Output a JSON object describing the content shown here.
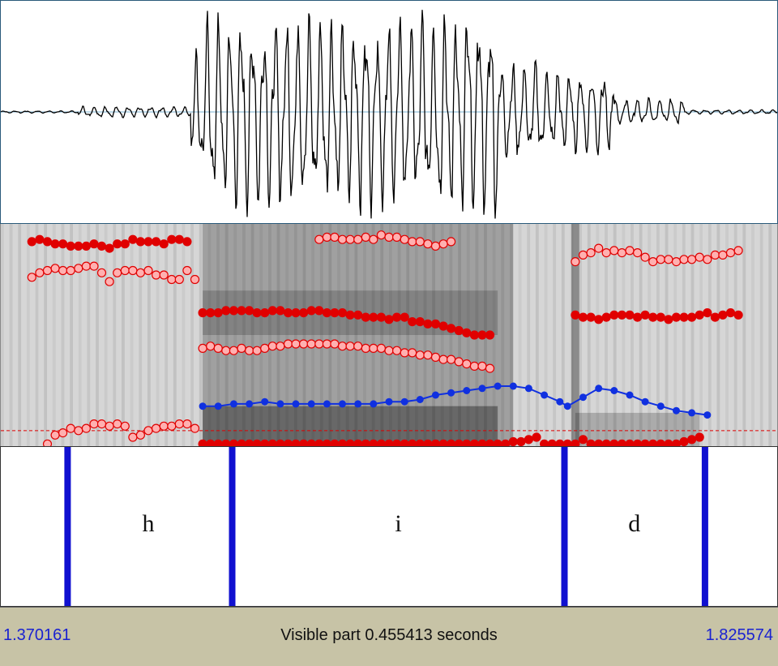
{
  "colors": {
    "boundary": "#1010d0",
    "formant": "#e00000",
    "pitch": "#1030e0",
    "time_label": "#1a22d0"
  },
  "waveform": {
    "segments": [
      {
        "from": 0.0,
        "to": 0.1,
        "amp": 0.01
      },
      {
        "from": 0.1,
        "to": 0.245,
        "amp": 0.05
      },
      {
        "from": 0.245,
        "to": 0.265,
        "amp": 0.55
      },
      {
        "from": 0.265,
        "to": 0.56,
        "amp": 0.86
      },
      {
        "from": 0.56,
        "to": 0.64,
        "amp": 0.95
      },
      {
        "from": 0.64,
        "to": 0.7,
        "amp": 0.45
      },
      {
        "from": 0.7,
        "to": 0.79,
        "amp": 0.38
      },
      {
        "from": 0.79,
        "to": 0.88,
        "amp": 0.12
      },
      {
        "from": 0.88,
        "to": 1.0,
        "amp": 0.02
      }
    ]
  },
  "spectrogram": {
    "formant_tracks": [
      [
        [
          0.06,
          0.01
        ],
        [
          0.07,
          0.05
        ],
        [
          0.08,
          0.06
        ],
        [
          0.09,
          0.08
        ],
        [
          0.1,
          0.07
        ],
        [
          0.11,
          0.08
        ],
        [
          0.12,
          0.1
        ],
        [
          0.13,
          0.1
        ],
        [
          0.14,
          0.09
        ],
        [
          0.15,
          0.1
        ],
        [
          0.16,
          0.09
        ],
        [
          0.17,
          0.04
        ],
        [
          0.18,
          0.05
        ],
        [
          0.19,
          0.07
        ],
        [
          0.2,
          0.08
        ],
        [
          0.21,
          0.09
        ],
        [
          0.22,
          0.09
        ],
        [
          0.23,
          0.1
        ],
        [
          0.24,
          0.1
        ],
        [
          0.25,
          0.08
        ]
      ],
      [
        [
          0.26,
          0.01
        ],
        [
          0.27,
          0.01
        ],
        [
          0.28,
          0.01
        ],
        [
          0.29,
          0.01
        ],
        [
          0.3,
          0.01
        ],
        [
          0.31,
          0.01
        ],
        [
          0.32,
          0.01
        ],
        [
          0.33,
          0.01
        ],
        [
          0.34,
          0.01
        ],
        [
          0.35,
          0.01
        ],
        [
          0.36,
          0.01
        ],
        [
          0.37,
          0.01
        ],
        [
          0.38,
          0.01
        ],
        [
          0.39,
          0.01
        ],
        [
          0.4,
          0.01
        ],
        [
          0.41,
          0.01
        ],
        [
          0.42,
          0.01
        ],
        [
          0.43,
          0.01
        ],
        [
          0.44,
          0.01
        ],
        [
          0.45,
          0.01
        ],
        [
          0.46,
          0.01
        ],
        [
          0.47,
          0.01
        ],
        [
          0.48,
          0.01
        ],
        [
          0.49,
          0.01
        ],
        [
          0.5,
          0.01
        ],
        [
          0.51,
          0.01
        ],
        [
          0.52,
          0.01
        ],
        [
          0.53,
          0.01
        ],
        [
          0.54,
          0.01
        ],
        [
          0.55,
          0.01
        ],
        [
          0.56,
          0.01
        ],
        [
          0.57,
          0.01
        ],
        [
          0.58,
          0.01
        ],
        [
          0.59,
          0.01
        ],
        [
          0.6,
          0.01
        ],
        [
          0.61,
          0.01
        ],
        [
          0.62,
          0.01
        ],
        [
          0.63,
          0.01
        ],
        [
          0.64,
          0.01
        ],
        [
          0.65,
          0.01
        ],
        [
          0.66,
          0.02
        ],
        [
          0.67,
          0.02
        ],
        [
          0.68,
          0.03
        ],
        [
          0.69,
          0.04
        ],
        [
          0.7,
          0.01
        ],
        [
          0.71,
          0.01
        ],
        [
          0.72,
          0.01
        ],
        [
          0.73,
          0.01
        ],
        [
          0.74,
          0.01
        ],
        [
          0.75,
          0.03
        ],
        [
          0.76,
          0.01
        ],
        [
          0.77,
          0.01
        ],
        [
          0.78,
          0.01
        ],
        [
          0.79,
          0.01
        ],
        [
          0.8,
          0.01
        ],
        [
          0.81,
          0.01
        ],
        [
          0.82,
          0.01
        ],
        [
          0.83,
          0.01
        ],
        [
          0.84,
          0.01
        ],
        [
          0.85,
          0.01
        ],
        [
          0.86,
          0.01
        ],
        [
          0.87,
          0.01
        ],
        [
          0.88,
          0.02
        ],
        [
          0.89,
          0.03
        ],
        [
          0.9,
          0.04
        ]
      ],
      [
        [
          0.26,
          0.44
        ],
        [
          0.27,
          0.45
        ],
        [
          0.28,
          0.44
        ],
        [
          0.29,
          0.43
        ],
        [
          0.3,
          0.43
        ],
        [
          0.31,
          0.44
        ],
        [
          0.32,
          0.43
        ],
        [
          0.33,
          0.43
        ],
        [
          0.34,
          0.44
        ],
        [
          0.35,
          0.45
        ],
        [
          0.36,
          0.45
        ],
        [
          0.37,
          0.46
        ],
        [
          0.38,
          0.46
        ],
        [
          0.39,
          0.46
        ],
        [
          0.4,
          0.46
        ],
        [
          0.41,
          0.46
        ],
        [
          0.42,
          0.46
        ],
        [
          0.43,
          0.46
        ],
        [
          0.44,
          0.45
        ],
        [
          0.45,
          0.45
        ],
        [
          0.46,
          0.45
        ],
        [
          0.47,
          0.44
        ],
        [
          0.48,
          0.44
        ],
        [
          0.49,
          0.44
        ],
        [
          0.5,
          0.43
        ],
        [
          0.51,
          0.43
        ],
        [
          0.52,
          0.42
        ],
        [
          0.53,
          0.42
        ],
        [
          0.54,
          0.41
        ],
        [
          0.55,
          0.41
        ],
        [
          0.56,
          0.4
        ],
        [
          0.57,
          0.39
        ],
        [
          0.58,
          0.39
        ],
        [
          0.59,
          0.38
        ],
        [
          0.6,
          0.37
        ],
        [
          0.61,
          0.36
        ],
        [
          0.62,
          0.36
        ],
        [
          0.63,
          0.35
        ]
      ],
      [
        [
          0.26,
          0.6
        ],
        [
          0.27,
          0.6
        ],
        [
          0.28,
          0.6
        ],
        [
          0.29,
          0.61
        ],
        [
          0.3,
          0.61
        ],
        [
          0.31,
          0.61
        ],
        [
          0.32,
          0.61
        ],
        [
          0.33,
          0.6
        ],
        [
          0.34,
          0.6
        ],
        [
          0.35,
          0.61
        ],
        [
          0.36,
          0.61
        ],
        [
          0.37,
          0.6
        ],
        [
          0.38,
          0.6
        ],
        [
          0.39,
          0.6
        ],
        [
          0.4,
          0.61
        ],
        [
          0.41,
          0.61
        ],
        [
          0.42,
          0.6
        ],
        [
          0.43,
          0.6
        ],
        [
          0.44,
          0.6
        ],
        [
          0.45,
          0.59
        ],
        [
          0.46,
          0.59
        ],
        [
          0.47,
          0.58
        ],
        [
          0.48,
          0.58
        ],
        [
          0.49,
          0.58
        ],
        [
          0.5,
          0.57
        ],
        [
          0.51,
          0.58
        ],
        [
          0.52,
          0.58
        ],
        [
          0.53,
          0.56
        ],
        [
          0.54,
          0.56
        ],
        [
          0.55,
          0.55
        ],
        [
          0.56,
          0.55
        ],
        [
          0.57,
          0.54
        ],
        [
          0.58,
          0.53
        ],
        [
          0.59,
          0.52
        ],
        [
          0.6,
          0.51
        ],
        [
          0.61,
          0.5
        ],
        [
          0.62,
          0.5
        ],
        [
          0.63,
          0.5
        ]
      ],
      [
        [
          0.04,
          0.76
        ],
        [
          0.05,
          0.78
        ],
        [
          0.06,
          0.79
        ],
        [
          0.07,
          0.8
        ],
        [
          0.08,
          0.79
        ],
        [
          0.09,
          0.79
        ],
        [
          0.1,
          0.8
        ],
        [
          0.11,
          0.81
        ],
        [
          0.12,
          0.81
        ],
        [
          0.13,
          0.78
        ],
        [
          0.14,
          0.74
        ],
        [
          0.15,
          0.78
        ],
        [
          0.16,
          0.79
        ],
        [
          0.17,
          0.79
        ],
        [
          0.18,
          0.78
        ],
        [
          0.19,
          0.79
        ],
        [
          0.2,
          0.77
        ],
        [
          0.21,
          0.77
        ],
        [
          0.22,
          0.75
        ],
        [
          0.23,
          0.75
        ],
        [
          0.24,
          0.79
        ],
        [
          0.25,
          0.75
        ]
      ],
      [
        [
          0.04,
          0.92
        ],
        [
          0.05,
          0.93
        ],
        [
          0.06,
          0.92
        ],
        [
          0.07,
          0.91
        ],
        [
          0.08,
          0.91
        ],
        [
          0.09,
          0.9
        ],
        [
          0.1,
          0.9
        ],
        [
          0.11,
          0.9
        ],
        [
          0.12,
          0.91
        ],
        [
          0.13,
          0.9
        ],
        [
          0.14,
          0.89
        ],
        [
          0.15,
          0.91
        ],
        [
          0.16,
          0.91
        ],
        [
          0.17,
          0.93
        ],
        [
          0.18,
          0.92
        ],
        [
          0.19,
          0.92
        ],
        [
          0.2,
          0.92
        ],
        [
          0.21,
          0.91
        ],
        [
          0.22,
          0.93
        ],
        [
          0.23,
          0.93
        ],
        [
          0.24,
          0.92
        ]
      ],
      [
        [
          0.41,
          0.93
        ],
        [
          0.42,
          0.94
        ],
        [
          0.43,
          0.94
        ],
        [
          0.44,
          0.93
        ],
        [
          0.45,
          0.93
        ],
        [
          0.46,
          0.93
        ],
        [
          0.47,
          0.94
        ],
        [
          0.48,
          0.93
        ],
        [
          0.49,
          0.95
        ],
        [
          0.5,
          0.94
        ],
        [
          0.51,
          0.94
        ],
        [
          0.52,
          0.93
        ],
        [
          0.53,
          0.92
        ],
        [
          0.54,
          0.92
        ],
        [
          0.55,
          0.91
        ],
        [
          0.56,
          0.9
        ],
        [
          0.57,
          0.91
        ],
        [
          0.58,
          0.92
        ]
      ],
      [
        [
          0.74,
          0.59
        ],
        [
          0.75,
          0.58
        ],
        [
          0.76,
          0.58
        ],
        [
          0.77,
          0.57
        ],
        [
          0.78,
          0.58
        ],
        [
          0.79,
          0.59
        ],
        [
          0.8,
          0.59
        ],
        [
          0.81,
          0.59
        ],
        [
          0.82,
          0.58
        ],
        [
          0.83,
          0.59
        ],
        [
          0.84,
          0.58
        ],
        [
          0.85,
          0.58
        ],
        [
          0.86,
          0.57
        ],
        [
          0.87,
          0.58
        ],
        [
          0.88,
          0.58
        ],
        [
          0.89,
          0.58
        ],
        [
          0.9,
          0.59
        ],
        [
          0.91,
          0.6
        ],
        [
          0.92,
          0.58
        ],
        [
          0.93,
          0.59
        ],
        [
          0.94,
          0.6
        ],
        [
          0.95,
          0.59
        ]
      ],
      [
        [
          0.74,
          0.83
        ],
        [
          0.75,
          0.86
        ],
        [
          0.76,
          0.87
        ],
        [
          0.77,
          0.89
        ],
        [
          0.78,
          0.87
        ],
        [
          0.79,
          0.88
        ],
        [
          0.8,
          0.87
        ],
        [
          0.81,
          0.88
        ],
        [
          0.82,
          0.87
        ],
        [
          0.83,
          0.85
        ],
        [
          0.84,
          0.83
        ],
        [
          0.85,
          0.84
        ],
        [
          0.86,
          0.84
        ],
        [
          0.87,
          0.83
        ],
        [
          0.88,
          0.84
        ],
        [
          0.89,
          0.84
        ],
        [
          0.9,
          0.85
        ],
        [
          0.91,
          0.84
        ],
        [
          0.92,
          0.86
        ],
        [
          0.93,
          0.86
        ],
        [
          0.94,
          0.87
        ],
        [
          0.95,
          0.88
        ]
      ]
    ],
    "pitch_track": [
      [
        0.26,
        0.18
      ],
      [
        0.28,
        0.18
      ],
      [
        0.3,
        0.19
      ],
      [
        0.32,
        0.19
      ],
      [
        0.34,
        0.2
      ],
      [
        0.36,
        0.19
      ],
      [
        0.38,
        0.19
      ],
      [
        0.4,
        0.19
      ],
      [
        0.42,
        0.19
      ],
      [
        0.44,
        0.19
      ],
      [
        0.46,
        0.19
      ],
      [
        0.48,
        0.19
      ],
      [
        0.5,
        0.2
      ],
      [
        0.52,
        0.2
      ],
      [
        0.54,
        0.21
      ],
      [
        0.56,
        0.23
      ],
      [
        0.58,
        0.24
      ],
      [
        0.6,
        0.25
      ],
      [
        0.62,
        0.26
      ],
      [
        0.64,
        0.27
      ],
      [
        0.66,
        0.27
      ],
      [
        0.68,
        0.26
      ],
      [
        0.7,
        0.23
      ],
      [
        0.72,
        0.2
      ],
      [
        0.73,
        0.18
      ],
      [
        0.75,
        0.22
      ],
      [
        0.77,
        0.26
      ],
      [
        0.79,
        0.25
      ],
      [
        0.81,
        0.23
      ],
      [
        0.83,
        0.2
      ],
      [
        0.85,
        0.18
      ],
      [
        0.87,
        0.16
      ],
      [
        0.89,
        0.15
      ],
      [
        0.91,
        0.14
      ]
    ],
    "reference_line_level": 0.07
  },
  "segmentation": {
    "boundaries": [
      0.086,
      0.298,
      0.726,
      0.907
    ],
    "segments": [
      {
        "label": "h",
        "center": 0.19
      },
      {
        "label": "i",
        "center": 0.512
      },
      {
        "label": "d",
        "center": 0.816
      }
    ]
  },
  "status": {
    "start_time": "1.370161",
    "visible_part": "Visible part 0.455413 seconds",
    "end_time": "1.825574"
  }
}
